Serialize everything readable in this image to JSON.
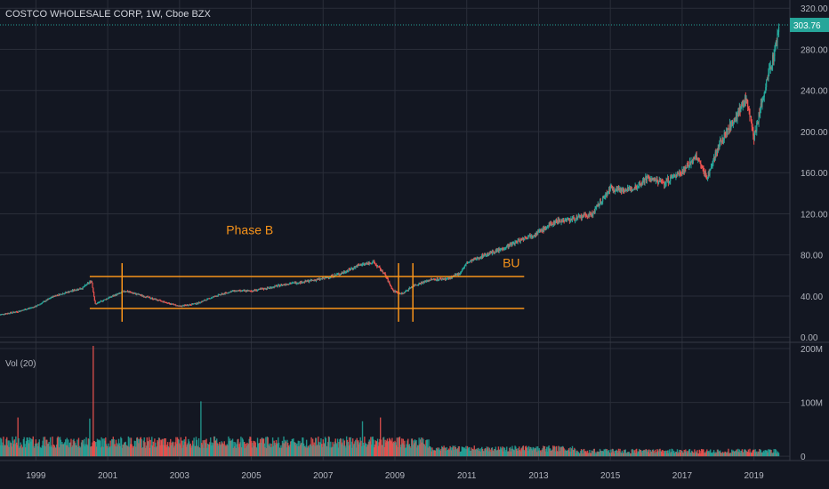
{
  "header": {
    "title": "COSTCO WHOLESALE CORP, 1W, Cboe BZX"
  },
  "volume_pane": {
    "label": "Vol (20)"
  },
  "colors": {
    "background": "#131722",
    "grid": "#2a2e39",
    "axis_text": "#b2b5be",
    "up": "#26a69a",
    "down": "#ef5350",
    "drawing": "#f7931a",
    "last_price": "#26a69a"
  },
  "chart_data": {
    "type": "candlestick",
    "title": "COSTCO WHOLESALE CORP, 1W, Cboe BZX",
    "grid": true,
    "price_axis": {
      "ticks": [
        0,
        40,
        80,
        120,
        160,
        200,
        240,
        280,
        320
      ],
      "tick_labels": [
        "0.00",
        "40.00",
        "80.00",
        "120.00",
        "160.00",
        "200.00",
        "240.00",
        "280.00",
        "320.00"
      ],
      "ylim": [
        -5,
        328
      ]
    },
    "last_price": 303.76,
    "last_price_label": "303.76",
    "volume_axis": {
      "ticks": [
        0,
        100,
        200
      ],
      "tick_labels": [
        "0",
        "100M",
        "200M"
      ],
      "unit": "M shares",
      "ylim": [
        -8,
        210
      ]
    },
    "time_axis": {
      "range": [
        1998.0,
        2020.0
      ],
      "ticks": [
        1999,
        2001,
        2003,
        2005,
        2007,
        2009,
        2011,
        2013,
        2015,
        2017,
        2019
      ],
      "tick_labels": [
        "1999",
        "2001",
        "2003",
        "2005",
        "2007",
        "2009",
        "2011",
        "2013",
        "2015",
        "2017",
        "2019"
      ]
    },
    "price_path": [
      [
        1998.0,
        22
      ],
      [
        1998.5,
        25
      ],
      [
        1999.0,
        30
      ],
      [
        1999.5,
        40
      ],
      [
        2000.0,
        45
      ],
      [
        2000.3,
        48
      ],
      [
        2000.55,
        55
      ],
      [
        2000.65,
        32
      ],
      [
        2001.0,
        38
      ],
      [
        2001.5,
        45
      ],
      [
        2002.0,
        40
      ],
      [
        2002.5,
        35
      ],
      [
        2003.0,
        30
      ],
      [
        2003.5,
        33
      ],
      [
        2004.0,
        40
      ],
      [
        2004.5,
        45
      ],
      [
        2005.0,
        45
      ],
      [
        2005.5,
        48
      ],
      [
        2006.0,
        52
      ],
      [
        2006.5,
        54
      ],
      [
        2007.0,
        57
      ],
      [
        2007.5,
        62
      ],
      [
        2008.0,
        70
      ],
      [
        2008.4,
        73
      ],
      [
        2008.7,
        62
      ],
      [
        2008.95,
        45
      ],
      [
        2009.2,
        42
      ],
      [
        2009.5,
        50
      ],
      [
        2010.0,
        56
      ],
      [
        2010.5,
        57
      ],
      [
        2010.8,
        62
      ],
      [
        2011.0,
        72
      ],
      [
        2011.5,
        80
      ],
      [
        2012.0,
        86
      ],
      [
        2012.5,
        95
      ],
      [
        2013.0,
        102
      ],
      [
        2013.5,
        113
      ],
      [
        2014.0,
        115
      ],
      [
        2014.5,
        120
      ],
      [
        2015.0,
        145
      ],
      [
        2015.5,
        143
      ],
      [
        2015.8,
        148
      ],
      [
        2016.0,
        155
      ],
      [
        2016.5,
        150
      ],
      [
        2017.0,
        162
      ],
      [
        2017.4,
        175
      ],
      [
        2017.7,
        155
      ],
      [
        2018.0,
        185
      ],
      [
        2018.5,
        215
      ],
      [
        2018.8,
        232
      ],
      [
        2019.0,
        195
      ],
      [
        2019.3,
        240
      ],
      [
        2019.6,
        282
      ],
      [
        2019.7,
        303.76
      ]
    ],
    "volume_spikes": [
      {
        "date": 2000.6,
        "value": 205
      },
      {
        "date": 2000.5,
        "value": 70
      },
      {
        "date": 2003.6,
        "value": 102
      },
      {
        "date": 2008.6,
        "value": 72
      },
      {
        "date": 2008.1,
        "value": 65
      },
      {
        "date": 1998.5,
        "value": 72
      }
    ],
    "drawings": {
      "horizontal_lines": [
        {
          "price": 59,
          "from": 2000.5,
          "to": 2012.6
        },
        {
          "price": 28,
          "from": 2000.5,
          "to": 2012.6
        }
      ],
      "vertical_lines": [
        {
          "date": 2001.4,
          "from_price": 15,
          "to_price": 72
        },
        {
          "date": 2009.1,
          "from_price": 15,
          "to_price": 72
        },
        {
          "date": 2009.5,
          "from_price": 15,
          "to_price": 72
        }
      ]
    },
    "annotations": [
      {
        "text": "Phase B",
        "date": 2004.3,
        "price": 100
      },
      {
        "text": "BU",
        "date": 2012.0,
        "price": 68
      }
    ]
  }
}
